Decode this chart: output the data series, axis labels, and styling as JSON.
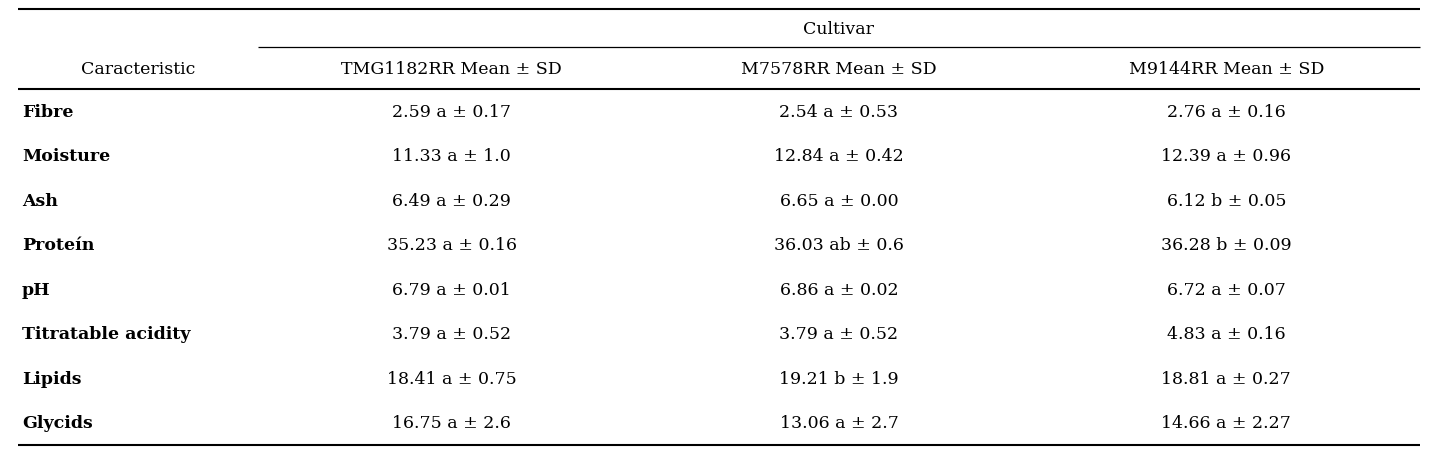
{
  "col_header_main": "Cultivar",
  "col_header_row": "Caracteristic",
  "sub_headers": [
    "TMG1182RR Mean ± SD",
    "M7578RR Mean ± SD",
    "M9144RR Mean ± SD"
  ],
  "rows": [
    [
      "Fibre",
      "2.59 a ± 0.17",
      "2.54 a ± 0.53",
      "2.76 a ± 0.16"
    ],
    [
      "Moisture",
      "11.33 a ± 1.0",
      "12.84 a ± 0.42",
      "12.39 a ± 0.96"
    ],
    [
      "Ash",
      "6.49 a ± 0.29",
      "6.65 a ± 0.00",
      "6.12 b ± 0.05"
    ],
    [
      "Proteín",
      "35.23 a ± 0.16",
      "36.03 ab ± 0.6",
      "36.28 b ± 0.09"
    ],
    [
      "pH",
      "6.79 a ± 0.01",
      "6.86 a ± 0.02",
      "6.72 a ± 0.07"
    ],
    [
      "Titratable acidity",
      "3.79 a ± 0.52",
      "3.79 a ± 0.52",
      "4.83 a ± 0.16"
    ],
    [
      "Lipids",
      "18.41 a ± 0.75",
      "19.21 b ± 1.9",
      "18.81 a ± 0.27"
    ],
    [
      "Glycids",
      "16.75 a ± 2.6",
      "13.06 a ± 2.7",
      "14.66 a ± 2.27"
    ]
  ],
  "background_color": "#ffffff",
  "text_color": "#000000",
  "font_size": 12.5,
  "header_font_size": 12.5,
  "fig_width": 14.38,
  "fig_height": 4.56,
  "dpi": 100
}
